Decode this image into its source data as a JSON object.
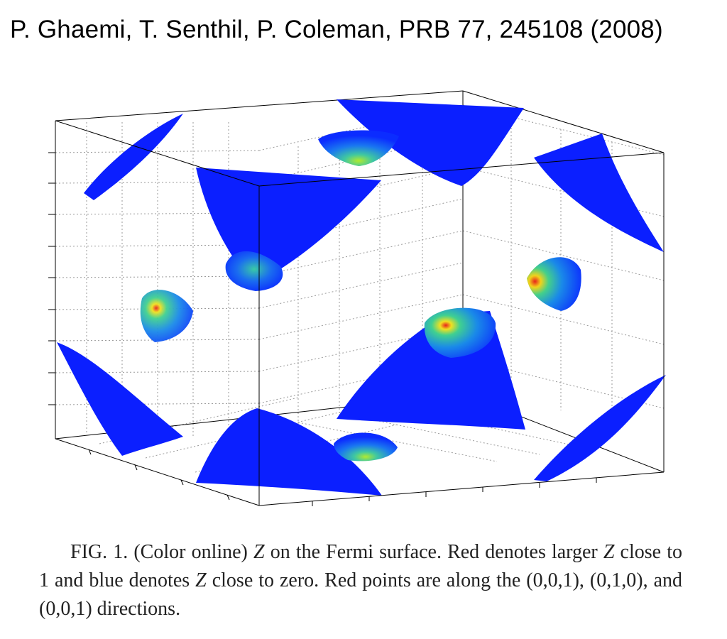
{
  "header": {
    "citation": "P. Ghaemi, T. Senthil, P. Coleman, PRB 77, 245108 (2008)"
  },
  "figure": {
    "subject": "Z on the Fermi surface",
    "color_scale": {
      "low": "#0a1cff",
      "mid": "#33c6a6",
      "high": "#e8221c"
    },
    "box_edge_color": "#000000",
    "grid_color": "#9a9a9a"
  },
  "caption": {
    "label": "FIG. 1.",
    "part1": " (Color online) ",
    "z1": "Z",
    "part2": " on the Fermi surface. Red denotes larger ",
    "z2": "Z",
    "part3": " close to 1 and blue denotes ",
    "z3": "Z",
    "part4": " close to zero. Red points are along the (0,0,1), (0,1,0), and (0,0,1) directions."
  }
}
